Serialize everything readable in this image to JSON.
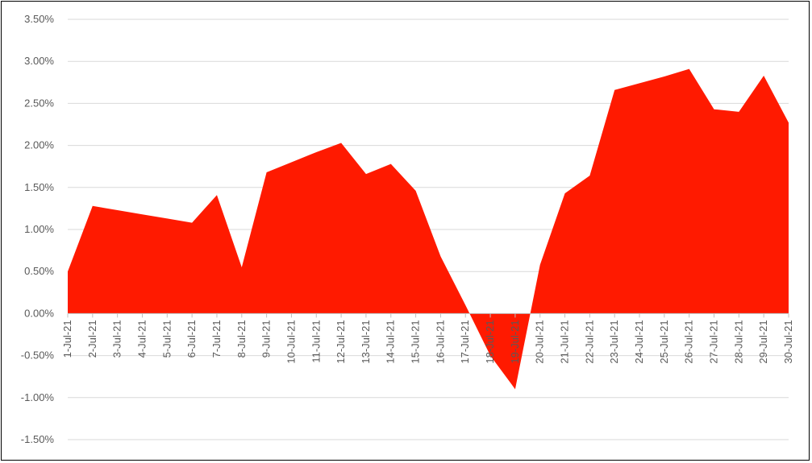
{
  "chart_data": {
    "type": "area",
    "title": "",
    "xlabel": "",
    "ylabel": "",
    "ylim": [
      -0.015,
      0.035
    ],
    "y_ticks": [
      {
        "value": 0.035,
        "label": "3.50%"
      },
      {
        "value": 0.03,
        "label": "3.00%"
      },
      {
        "value": 0.025,
        "label": "2.50%"
      },
      {
        "value": 0.02,
        "label": "2.00%"
      },
      {
        "value": 0.015,
        "label": "1.50%"
      },
      {
        "value": 0.01,
        "label": "1.00%"
      },
      {
        "value": 0.005,
        "label": "0.50%"
      },
      {
        "value": 0.0,
        "label": "0.00%"
      },
      {
        "value": -0.005,
        "label": "-0.50%"
      },
      {
        "value": -0.01,
        "label": "-1.00%"
      },
      {
        "value": -0.015,
        "label": "-1.50%"
      }
    ],
    "grid": true,
    "legend": "none",
    "colors": {
      "area": "#ff1a00",
      "grid": "#d9d9d9",
      "axis": "#bfbfbf",
      "text": "#595959"
    },
    "categories": [
      "1-Jul-21",
      "2-Jul-21",
      "3-Jul-21",
      "4-Jul-21",
      "5-Jul-21",
      "6-Jul-21",
      "7-Jul-21",
      "8-Jul-21",
      "9-Jul-21",
      "10-Jul-21",
      "11-Jul-21",
      "12-Jul-21",
      "13-Jul-21",
      "14-Jul-21",
      "15-Jul-21",
      "16-Jul-21",
      "17-Jul-21",
      "18-Jul-21",
      "19-Jul-21",
      "20-Jul-21",
      "21-Jul-21",
      "22-Jul-21",
      "23-Jul-21",
      "24-Jul-21",
      "25-Jul-21",
      "26-Jul-21",
      "27-Jul-21",
      "28-Jul-21",
      "29-Jul-21",
      "30-Jul-21"
    ],
    "values": [
      0.005,
      0.0128,
      0.0123,
      0.0118,
      0.0113,
      0.0108,
      0.0141,
      0.0055,
      0.0168,
      0.018,
      0.0192,
      0.0203,
      0.0166,
      0.0178,
      0.0146,
      0.0068,
      0.001,
      -0.005,
      -0.009,
      0.0058,
      0.0143,
      0.0164,
      0.0266,
      0.0274,
      0.0282,
      0.0291,
      0.0243,
      0.024,
      0.0283,
      0.0227
    ]
  }
}
